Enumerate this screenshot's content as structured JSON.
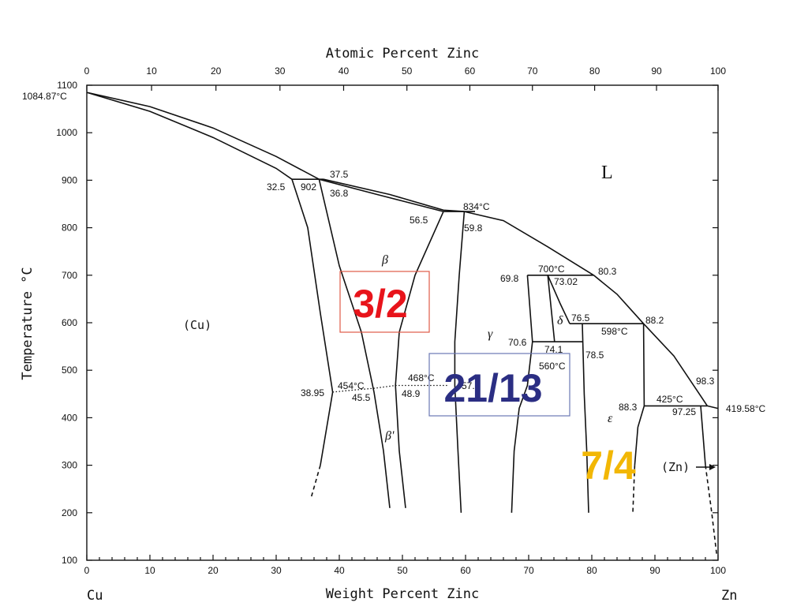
{
  "chart_data": {
    "type": "line",
    "title": "",
    "top_axis_label": "Atomic Percent Zinc",
    "xlabel": "Weight Percent Zinc",
    "ylabel": "Temperature °C",
    "xlim": [
      0,
      100
    ],
    "ylim": [
      100,
      1100
    ],
    "x_ticks": [
      0,
      10,
      20,
      30,
      40,
      50,
      60,
      70,
      80,
      90,
      100
    ],
    "top_ticks": [
      0,
      10,
      20,
      30,
      40,
      50,
      60,
      70,
      80,
      90,
      100
    ],
    "y_ticks": [
      100,
      200,
      300,
      400,
      500,
      600,
      700,
      800,
      900,
      1000,
      1100
    ],
    "grid": false,
    "corner_labels": {
      "left": "Cu",
      "right": "Zn"
    },
    "phase_labels": {
      "liquid": "L",
      "cu": "(Cu)",
      "zn": "(Zn)",
      "beta": "β",
      "beta_prime": "β'",
      "gamma": "γ",
      "delta": "δ",
      "epsilon": "ε"
    },
    "ratio_labels": [
      {
        "text": "3/2",
        "color": "#e8141b",
        "boxed": true,
        "box_color": "#e05a48"
      },
      {
        "text": "21/13",
        "color": "#2b2e83",
        "boxed": true,
        "box_color": "#6b78b4"
      },
      {
        "text": "7/4",
        "color": "#f2b705",
        "boxed": false
      }
    ],
    "annotations": {
      "cu_melt": "1084.87°C",
      "a375": "37.5",
      "a325": "32.5",
      "a902": "902",
      "a368": "36.8",
      "a834": "834°C",
      "a565": "56.5",
      "a598": "59.8",
      "a700": "700°C",
      "a698": "69.8",
      "a7302": "73.02",
      "a803": "80.3",
      "a765": "76.5",
      "a598c": "598°C",
      "a882": "88.2",
      "a706": "70.6",
      "a741": "74.1",
      "a560": "560°C",
      "a785": "78.5",
      "a983": "98.3",
      "a883": "88.3",
      "a425": "425°C",
      "a9725": "97.25",
      "zn_melt": "419.58°C",
      "a3895": "38.95",
      "a454": "454°C",
      "a455": "45.5",
      "a468": "468°C",
      "a489": "48.9",
      "a571": "57.1"
    },
    "series": [
      {
        "role": "liquidus-cu",
        "x": [
          0,
          10,
          20,
          30,
          36.8
        ],
        "y": [
          1084.87,
          1055,
          1010,
          950,
          902
        ]
      },
      {
        "role": "solidus-cu",
        "x": [
          0,
          10,
          20,
          30,
          32.5
        ],
        "y": [
          1084.87,
          1045,
          990,
          925,
          902
        ]
      },
      {
        "role": "peritectic-902",
        "x": [
          32.5,
          37.5
        ],
        "y": [
          902,
          902
        ]
      },
      {
        "role": "liquidus-beta",
        "x": [
          37.5,
          48,
          56.5,
          59.8
        ],
        "y": [
          902,
          870,
          837,
          834
        ]
      },
      {
        "role": "beta-solidus-upper",
        "x": [
          36.8,
          46,
          56.5
        ],
        "y": [
          902,
          870,
          834
        ]
      },
      {
        "role": "peritectic-834",
        "x": [
          56.5,
          61.5
        ],
        "y": [
          834,
          834
        ]
      },
      {
        "role": "liquidus-gamma",
        "x": [
          59.8,
          66,
          73,
          80.3
        ],
        "y": [
          834,
          815,
          760,
          700
        ]
      },
      {
        "role": "peritectic-700",
        "x": [
          69.8,
          80.3
        ],
        "y": [
          700,
          700
        ]
      },
      {
        "role": "liquidus-delta",
        "x": [
          80.3,
          84,
          88.2
        ],
        "y": [
          700,
          660,
          598
        ]
      },
      {
        "role": "peritectic-598",
        "x": [
          76.5,
          88.2
        ],
        "y": [
          598,
          598
        ]
      },
      {
        "role": "liquidus-epsilon",
        "x": [
          88.2,
          93,
          98.3
        ],
        "y": [
          598,
          530,
          425
        ]
      },
      {
        "role": "peritectic-425",
        "x": [
          88.3,
          98.3
        ],
        "y": [
          425,
          425
        ]
      },
      {
        "role": "liquidus-zn",
        "x": [
          98.3,
          100
        ],
        "y": [
          425,
          419.58
        ]
      },
      {
        "role": "cu-solvus",
        "x": [
          32.5,
          35,
          37,
          38.95,
          37,
          35.5
        ],
        "y": [
          902,
          800,
          620,
          454,
          300,
          230
        ]
      },
      {
        "role": "beta-left",
        "x": [
          36.8,
          40,
          43.5,
          45.5,
          47,
          48
        ],
        "y": [
          902,
          720,
          580,
          454,
          330,
          210
        ]
      },
      {
        "role": "beta-right",
        "x": [
          56.5,
          52,
          49.5,
          48.9,
          49.5,
          50.5
        ],
        "y": [
          834,
          700,
          580,
          468,
          330,
          210
        ]
      },
      {
        "role": "gamma-left",
        "x": [
          59.8,
          59,
          58.3,
          58.3,
          58.8,
          59.3
        ],
        "y": [
          834,
          700,
          560,
          468,
          330,
          200
        ]
      },
      {
        "role": "gamma-right",
        "x": [
          69.8,
          70.6,
          69.8,
          68.5,
          67.7,
          67.3
        ],
        "y": [
          700,
          560,
          468,
          420,
          330,
          200
        ]
      },
      {
        "role": "delta-left",
        "x": [
          73.02,
          74.1
        ],
        "y": [
          700,
          560
        ]
      },
      {
        "role": "delta-right",
        "x": [
          73.02,
          75,
          76.5
        ],
        "y": [
          700,
          640,
          598
        ]
      },
      {
        "role": "eutectoid-560",
        "x": [
          70.6,
          78.5
        ],
        "y": [
          560,
          560
        ]
      },
      {
        "role": "epsilon-left",
        "x": [
          78.5,
          78.8,
          79.2,
          79.5
        ],
        "y": [
          598,
          450,
          330,
          200
        ]
      },
      {
        "role": "epsilon-right",
        "x": [
          88.2,
          88.3,
          87.3,
          86.8,
          86.5
        ],
        "y": [
          598,
          425,
          380,
          300,
          200
        ]
      },
      {
        "role": "zn-solvus",
        "x": [
          97.25,
          98,
          99,
          99.8
        ],
        "y": [
          425,
          300,
          200,
          110
        ]
      },
      {
        "role": "ordering-beta-prime",
        "x": [
          38.95,
          42,
          45.5,
          48.9,
          53,
          57.1
        ],
        "y": [
          454,
          458,
          462,
          468,
          468,
          468
        ]
      }
    ]
  }
}
